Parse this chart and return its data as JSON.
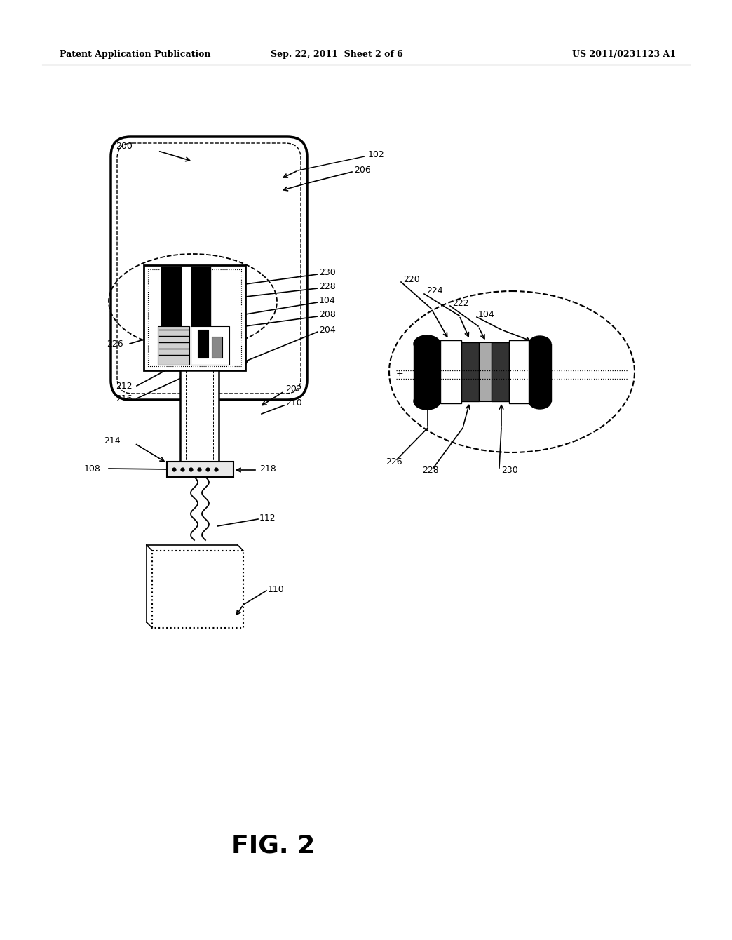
{
  "bg_color": "#ffffff",
  "header_left": "Patent Application Publication",
  "header_mid": "Sep. 22, 2011  Sheet 2 of 6",
  "header_right": "US 2011/0231123 A1",
  "fig_label": "FIG. 2"
}
